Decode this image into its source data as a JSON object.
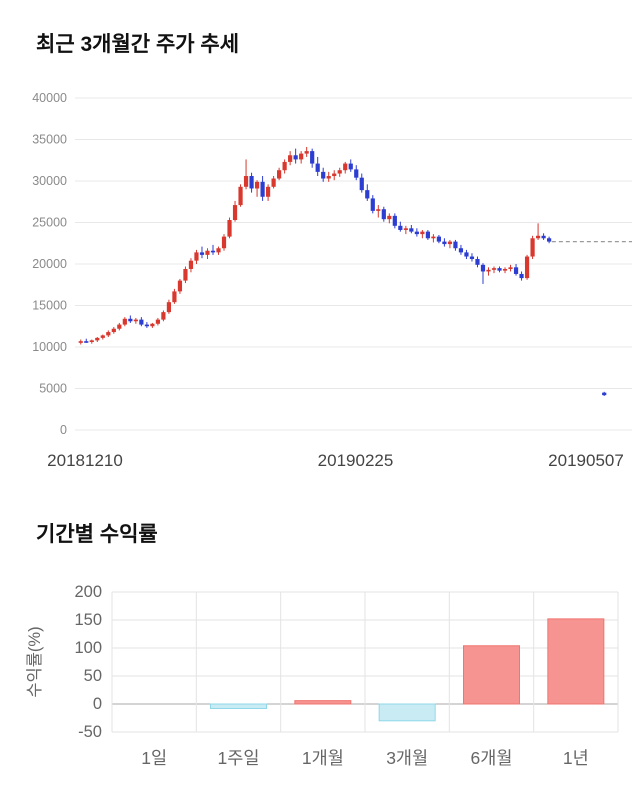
{
  "chart_data": [
    {
      "type": "candlestick",
      "title": "최근 3개월간 주가 추세",
      "ylim": [
        0,
        40000
      ],
      "ytick_step": 5000,
      "ytick_labels": [
        "0",
        "5000",
        "10000",
        "15000",
        "20000",
        "25000",
        "30000",
        "35000",
        "40000"
      ],
      "x_tick_labels": [
        "20181210",
        "20190225",
        "20190507"
      ],
      "total_slots": 100,
      "grid": true,
      "legend": "none",
      "candles_ohlc": [
        [
          10500,
          10900,
          10300,
          10700
        ],
        [
          10700,
          11000,
          10500,
          10600
        ],
        [
          10600,
          10900,
          10400,
          10800
        ],
        [
          10800,
          11200,
          10600,
          11100
        ],
        [
          11100,
          11500,
          10900,
          11400
        ],
        [
          11400,
          12000,
          11200,
          11800
        ],
        [
          11800,
          12400,
          11600,
          12200
        ],
        [
          12200,
          12900,
          12000,
          12700
        ],
        [
          12700,
          13600,
          12500,
          13400
        ],
        [
          13400,
          13800,
          12900,
          13100
        ],
        [
          13100,
          13500,
          12800,
          13300
        ],
        [
          13300,
          13600,
          12500,
          12700
        ],
        [
          12700,
          13000,
          12300,
          12500
        ],
        [
          12500,
          12900,
          12300,
          12800
        ],
        [
          12800,
          13500,
          12600,
          13300
        ],
        [
          13300,
          14400,
          13100,
          14200
        ],
        [
          14200,
          15700,
          14000,
          15400
        ],
        [
          15400,
          17000,
          15200,
          16700
        ],
        [
          16700,
          18200,
          16400,
          18000
        ],
        [
          18000,
          19700,
          17700,
          19400
        ],
        [
          19400,
          20700,
          19000,
          20400
        ],
        [
          20400,
          21700,
          20000,
          21400
        ],
        [
          21400,
          22100,
          20700,
          21100
        ],
        [
          21100,
          21900,
          20600,
          21600
        ],
        [
          21600,
          22300,
          21100,
          21400
        ],
        [
          21400,
          22100,
          21100,
          21900
        ],
        [
          21900,
          23600,
          21600,
          23300
        ],
        [
          23300,
          25600,
          23100,
          25300
        ],
        [
          25300,
          27600,
          25100,
          27100
        ],
        [
          27100,
          29600,
          26900,
          29300
        ],
        [
          29300,
          32600,
          29000,
          30600
        ],
        [
          30600,
          31000,
          28600,
          29100
        ],
        [
          29100,
          30100,
          28100,
          29900
        ],
        [
          29900,
          30600,
          27600,
          28100
        ],
        [
          28100,
          29600,
          27600,
          29300
        ],
        [
          29300,
          30600,
          29100,
          30300
        ],
        [
          30300,
          31600,
          30100,
          31300
        ],
        [
          31300,
          32600,
          30900,
          32300
        ],
        [
          32300,
          33600,
          31900,
          33100
        ],
        [
          33100,
          33900,
          32100,
          32600
        ],
        [
          32600,
          33600,
          32100,
          33300
        ],
        [
          33300,
          34100,
          32900,
          33600
        ],
        [
          33600,
          33900,
          31600,
          32100
        ],
        [
          32100,
          32900,
          30600,
          31100
        ],
        [
          31100,
          31600,
          29900,
          30300
        ],
        [
          30300,
          31100,
          29900,
          30600
        ],
        [
          30600,
          31300,
          30100,
          30900
        ],
        [
          30900,
          31600,
          30500,
          31300
        ],
        [
          31300,
          32300,
          30900,
          32100
        ],
        [
          32100,
          32600,
          31100,
          31400
        ],
        [
          31400,
          31900,
          30100,
          30400
        ],
        [
          30400,
          30900,
          28600,
          28900
        ],
        [
          28900,
          29600,
          27600,
          27900
        ],
        [
          27900,
          28300,
          26100,
          26400
        ],
        [
          26400,
          27100,
          25600,
          26600
        ],
        [
          26600,
          26900,
          25100,
          25400
        ],
        [
          25400,
          26100,
          24900,
          25800
        ],
        [
          25800,
          26100,
          24300,
          24600
        ],
        [
          24600,
          25100,
          23900,
          24100
        ],
        [
          24100,
          24600,
          23600,
          24300
        ],
        [
          24300,
          24700,
          23700,
          23900
        ],
        [
          23900,
          24300,
          23300,
          23600
        ],
        [
          23600,
          24100,
          23100,
          23900
        ],
        [
          23900,
          24100,
          22900,
          23100
        ],
        [
          23100,
          23600,
          22600,
          23300
        ],
        [
          23300,
          23500,
          22500,
          22700
        ],
        [
          22700,
          23100,
          22100,
          22400
        ],
        [
          22400,
          22900,
          21900,
          22700
        ],
        [
          22700,
          22900,
          21600,
          21900
        ],
        [
          21900,
          22300,
          21100,
          21400
        ],
        [
          21400,
          21700,
          20600,
          20900
        ],
        [
          20900,
          21300,
          20300,
          20600
        ],
        [
          20600,
          20900,
          19600,
          19900
        ],
        [
          19900,
          20100,
          17600,
          19100
        ],
        [
          19100,
          19600,
          18600,
          19300
        ],
        [
          19300,
          19700,
          18900,
          19500
        ],
        [
          19500,
          19700,
          19000,
          19200
        ],
        [
          19200,
          19600,
          18900,
          19400
        ],
        [
          19400,
          19900,
          19100,
          19600
        ],
        [
          19600,
          20000,
          18600,
          18800
        ],
        [
          18800,
          19100,
          18000,
          18300
        ],
        [
          18300,
          21100,
          18100,
          20900
        ],
        [
          20900,
          23400,
          20600,
          23100
        ],
        [
          23100,
          24900,
          22900,
          23400
        ],
        [
          23400,
          23700,
          22900,
          23100
        ],
        [
          23100,
          23300,
          22500,
          22700
        ]
      ],
      "outlier_candle": {
        "slot": 95,
        "ohlc": [
          4500,
          4600,
          4100,
          4200
        ]
      },
      "dashed_line": {
        "value": 22700,
        "from_slot": 86
      },
      "colors": {
        "up": "#d8382e",
        "down": "#2c3dd2",
        "grid": "#e8e8e8",
        "dashed": "#9a9a9a",
        "ytick_text": "#8a8a8a",
        "xtick_text": "#444444"
      }
    },
    {
      "type": "bar",
      "title": "기간별 수익률",
      "ylabel": "수익률(%)",
      "ylim": [
        -50,
        200
      ],
      "ytick_step": 50,
      "ytick_labels": [
        "200",
        "150",
        "100",
        "50",
        "0",
        "-50"
      ],
      "categories": [
        "1일",
        "1주일",
        "1개월",
        "3개월",
        "6개월",
        "1년"
      ],
      "values": [
        0,
        -8,
        6,
        -30,
        104,
        152
      ],
      "grid": true,
      "legend": "none",
      "colors": {
        "positive_fill": "#f59490",
        "positive_border": "#f07470",
        "negative_fill": "#c9ecf4",
        "negative_border": "#90d8e8",
        "grid": "#e3e3e3",
        "zero_line": "#aaaaaa",
        "axis_text": "#666666"
      }
    }
  ]
}
